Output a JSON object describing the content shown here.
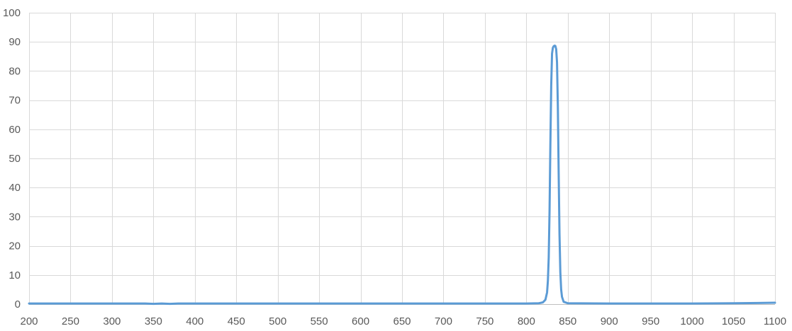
{
  "chart_data": {
    "type": "line",
    "title": "",
    "xlabel": "",
    "ylabel": "",
    "xlim": [
      200,
      1100
    ],
    "ylim": [
      0,
      100
    ],
    "x_ticks": [
      200,
      250,
      300,
      350,
      400,
      450,
      500,
      550,
      600,
      650,
      700,
      750,
      800,
      850,
      900,
      950,
      1000,
      1050,
      1100
    ],
    "y_ticks": [
      0,
      10,
      20,
      30,
      40,
      50,
      60,
      70,
      80,
      90,
      100
    ],
    "grid": true,
    "legend": "none",
    "colors": {
      "series": "#5b9bd5",
      "grid": "#d9d9d9",
      "tick_text": "#595959"
    },
    "series": [
      {
        "x": [
          200,
          300,
          340,
          350,
          360,
          370,
          380,
          500,
          700,
          800,
          815,
          820,
          823,
          825,
          826,
          827,
          828,
          829,
          830,
          831,
          832,
          833,
          834,
          835,
          836,
          837,
          838,
          839,
          840,
          841,
          842,
          843,
          845,
          850,
          900,
          1000,
          1050,
          1080,
          1100
        ],
        "y": [
          0.2,
          0.2,
          0.2,
          0.1,
          0.2,
          0.1,
          0.2,
          0.2,
          0.2,
          0.2,
          0.3,
          0.6,
          1.5,
          4,
          8,
          16,
          32,
          55,
          75,
          86,
          88,
          88.5,
          88.7,
          88.6,
          87.5,
          83,
          68,
          45,
          24,
          11,
          5,
          2.5,
          0.8,
          0.3,
          0.2,
          0.2,
          0.3,
          0.4,
          0.5
        ]
      }
    ]
  }
}
